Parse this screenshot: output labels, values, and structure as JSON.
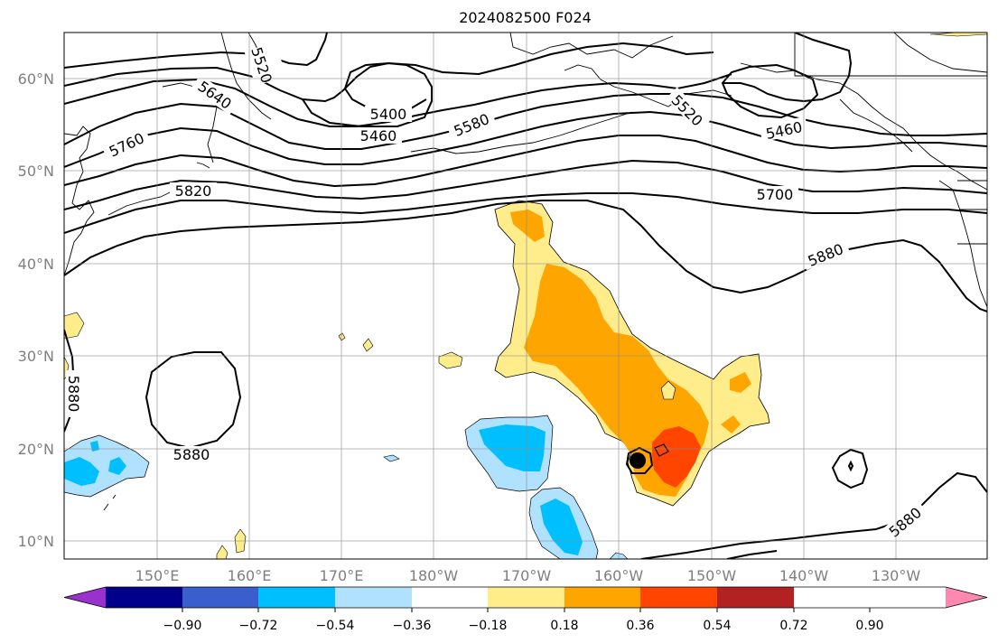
{
  "title": "2024082500 F024",
  "map": {
    "lat_labels": [
      "60°N",
      "50°N",
      "40°N",
      "30°N",
      "20°N",
      "10°N"
    ],
    "lon_labels": [
      "150°E",
      "160°E",
      "170°E",
      "180°W",
      "170°W",
      "160°W",
      "150°W",
      "140°W",
      "130°W"
    ],
    "contour_labels": [
      "5520",
      "5640",
      "5760",
      "5820",
      "5400",
      "5460",
      "5580",
      "5520",
      "5460",
      "5700",
      "5880",
      "5880",
      "5880",
      "5880"
    ]
  },
  "colorbar": {
    "colors": [
      "#9932cc",
      "#00008b",
      "#3a5fcd",
      "#00bfff",
      "#b0e2ff",
      "#ffffff",
      "#ffec8b",
      "#ffa500",
      "#ff4500",
      "#b22222",
      "#ff88b0"
    ],
    "tick_labels": [
      "−0.90",
      "−0.72",
      "−0.54",
      "−0.36",
      "−0.18",
      "0.18",
      "0.36",
      "0.54",
      "0.72",
      "0.90"
    ]
  }
}
